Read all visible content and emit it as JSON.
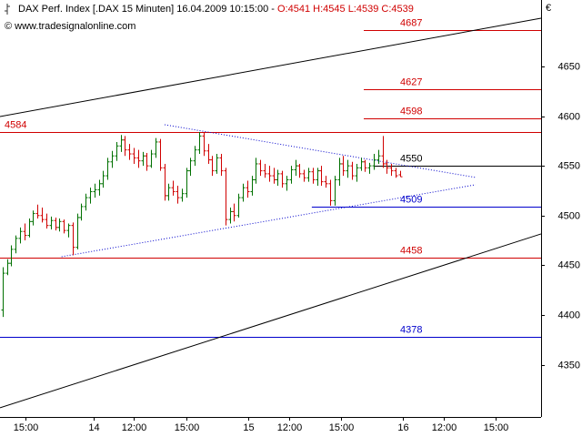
{
  "chart_data": {
    "type": "ohlc",
    "header": {
      "title": "DAX Perf. Index [.DAX  15 Minuten]",
      "datetime": "16.04.2009 10:15:00 -",
      "open": "O:4541",
      "high": "H:4545",
      "low": "L:4539",
      "close": "C:4539"
    },
    "watermark": "© www.tradesignalonline.com",
    "currency": "€",
    "up_color": "#007000",
    "down_color": "#d00000",
    "ylim": [
      4297.4,
      4716.8
    ],
    "yticks": [
      4350,
      4400,
      4450,
      4500,
      4550,
      4600,
      4650
    ],
    "xlim": [
      -0.6,
      123.3
    ],
    "xticks": [
      {
        "value": 5.2,
        "label": "15:00"
      },
      {
        "value": 20.8,
        "label": "14"
      },
      {
        "value": 30,
        "label": "12:00"
      },
      {
        "value": 42.1,
        "label": "15:00"
      },
      {
        "value": 56.3,
        "label": "15"
      },
      {
        "value": 65.6,
        "label": "12:00"
      },
      {
        "value": 77.5,
        "label": "15:00"
      },
      {
        "value": 91.7,
        "label": "16"
      },
      {
        "value": 101,
        "label": "12:00"
      },
      {
        "value": 112.9,
        "label": "15:00"
      }
    ],
    "ohlc": [
      [
        4405,
        4448,
        4398,
        4442
      ],
      [
        4442,
        4456,
        4440,
        4452
      ],
      [
        4452,
        4470,
        4449,
        4466
      ],
      [
        4466,
        4480,
        4462,
        4477
      ],
      [
        4477,
        4488,
        4472,
        4484
      ],
      [
        4484,
        4492,
        4475,
        4480
      ],
      [
        4480,
        4497,
        4478,
        4494
      ],
      [
        4494,
        4505,
        4490,
        4502
      ],
      [
        4502,
        4511,
        4497,
        4500
      ],
      [
        4500,
        4508,
        4493,
        4496
      ],
      [
        4496,
        4502,
        4487,
        4490
      ],
      [
        4490,
        4499,
        4486,
        4495
      ],
      [
        4495,
        4498,
        4485,
        4488
      ],
      [
        4488,
        4497,
        4484,
        4494
      ],
      [
        4494,
        4496,
        4482,
        4485
      ],
      [
        4485,
        4492,
        4478,
        4490
      ],
      [
        4490,
        4493,
        4460,
        4468
      ],
      [
        4468,
        4502,
        4466,
        4498
      ],
      [
        4498,
        4512,
        4495,
        4509
      ],
      [
        4509,
        4522,
        4505,
        4518
      ],
      [
        4518,
        4528,
        4512,
        4524
      ],
      [
        4524,
        4532,
        4518,
        4526
      ],
      [
        4526,
        4536,
        4520,
        4532
      ],
      [
        4532,
        4545,
        4528,
        4540
      ],
      [
        4540,
        4558,
        4536,
        4554
      ],
      [
        4554,
        4565,
        4548,
        4560
      ],
      [
        4560,
        4574,
        4555,
        4570
      ],
      [
        4570,
        4581,
        4564,
        4576
      ],
      [
        4576,
        4580,
        4560,
        4566
      ],
      [
        4566,
        4572,
        4556,
        4562
      ],
      [
        4562,
        4568,
        4552,
        4558
      ],
      [
        4558,
        4566,
        4548,
        4555
      ],
      [
        4555,
        4564,
        4550,
        4560
      ],
      [
        4560,
        4563,
        4545,
        4550
      ],
      [
        4550,
        4566,
        4548,
        4562
      ],
      [
        4562,
        4578,
        4558,
        4574
      ],
      [
        4574,
        4577,
        4545,
        4548
      ],
      [
        4548,
        4552,
        4515,
        4520
      ],
      [
        4520,
        4532,
        4515,
        4528
      ],
      [
        4528,
        4535,
        4520,
        4524
      ],
      [
        4524,
        4530,
        4512,
        4518
      ],
      [
        4518,
        4527,
        4514,
        4522
      ],
      [
        4522,
        4548,
        4518,
        4545
      ],
      [
        4545,
        4558,
        4540,
        4555
      ],
      [
        4555,
        4570,
        4550,
        4566
      ],
      [
        4566,
        4584,
        4562,
        4580
      ],
      [
        4580,
        4584,
        4560,
        4565
      ],
      [
        4565,
        4572,
        4552,
        4556
      ],
      [
        4556,
        4560,
        4540,
        4545
      ],
      [
        4545,
        4562,
        4542,
        4558
      ],
      [
        4558,
        4562,
        4540,
        4545
      ],
      [
        4545,
        4548,
        4490,
        4496
      ],
      [
        4496,
        4508,
        4492,
        4504
      ],
      [
        4504,
        4512,
        4494,
        4500
      ],
      [
        4500,
        4522,
        4498,
        4518
      ],
      [
        4518,
        4532,
        4514,
        4528
      ],
      [
        4528,
        4535,
        4518,
        4524
      ],
      [
        4524,
        4540,
        4520,
        4536
      ],
      [
        4536,
        4558,
        4532,
        4552
      ],
      [
        4552,
        4556,
        4540,
        4545
      ],
      [
        4545,
        4552,
        4538,
        4542
      ],
      [
        4542,
        4550,
        4534,
        4540
      ],
      [
        4540,
        4548,
        4532,
        4536
      ],
      [
        4536,
        4546,
        4530,
        4542
      ],
      [
        4542,
        4545,
        4528,
        4532
      ],
      [
        4532,
        4540,
        4525,
        4536
      ],
      [
        4536,
        4550,
        4532,
        4546
      ],
      [
        4546,
        4556,
        4540,
        4550
      ],
      [
        4550,
        4552,
        4538,
        4542
      ],
      [
        4542,
        4546,
        4534,
        4538
      ],
      [
        4538,
        4548,
        4534,
        4544
      ],
      [
        4544,
        4548,
        4532,
        4536
      ],
      [
        4536,
        4548,
        4530,
        4545
      ],
      [
        4545,
        4550,
        4530,
        4534
      ],
      [
        4534,
        4540,
        4528,
        4532
      ],
      [
        4532,
        4536,
        4510,
        4515
      ],
      [
        4515,
        4540,
        4510,
        4536
      ],
      [
        4536,
        4558,
        4530,
        4552
      ],
      [
        4552,
        4560,
        4540,
        4545
      ],
      [
        4545,
        4556,
        4538,
        4550
      ],
      [
        4550,
        4554,
        4536,
        4540
      ],
      [
        4540,
        4552,
        4534,
        4548
      ],
      [
        4548,
        4558,
        4545,
        4554
      ],
      [
        4554,
        4556,
        4544,
        4548
      ],
      [
        4548,
        4553,
        4542,
        4550
      ],
      [
        4550,
        4562,
        4546,
        4556
      ],
      [
        4556,
        4566,
        4552,
        4560
      ],
      [
        4560,
        4580,
        4548,
        4552
      ],
      [
        4552,
        4556,
        4542,
        4548
      ],
      [
        4548,
        4552,
        4540,
        4545
      ],
      [
        4545,
        4548,
        4538,
        4540
      ],
      [
        4541,
        4545,
        4539,
        4539
      ]
    ],
    "levels": [
      {
        "value": 4687,
        "color": "#d00000",
        "from": 82.7
      },
      {
        "value": 4627,
        "color": "#d00000",
        "from": 82.7
      },
      {
        "value": 4598,
        "color": "#d00000",
        "from": 82.7
      },
      {
        "value": 4584,
        "color": "#d00000",
        "from": -0.6,
        "label_left": true
      },
      {
        "value": 4550,
        "color": "#000000",
        "from": 85
      },
      {
        "value": 4509,
        "color": "#0000cc",
        "from": 70.8
      },
      {
        "value": 4458,
        "color": "#d00000",
        "from": -0.6
      },
      {
        "value": 4378,
        "color": "#0000cc",
        "from": -0.6
      }
    ],
    "trendlines": [
      {
        "x": [
          -0.6,
          123.3
        ],
        "y": [
          4599.6,
          4698.5
        ],
        "color": "#000000",
        "dotted": false
      },
      {
        "x": [
          -0.6,
          123.3
        ],
        "y": [
          4306.6,
          4481.5
        ],
        "color": "#000000",
        "dotted": false
      },
      {
        "x": [
          37.1,
          108.3
        ],
        "y": [
          4591.4,
          4538.3
        ],
        "color": "#0000cc",
        "dotted": true
      },
      {
        "x": [
          13.5,
          108.3
        ],
        "y": [
          4458.6,
          4531.0
        ],
        "color": "#0000cc",
        "dotted": true
      }
    ]
  }
}
